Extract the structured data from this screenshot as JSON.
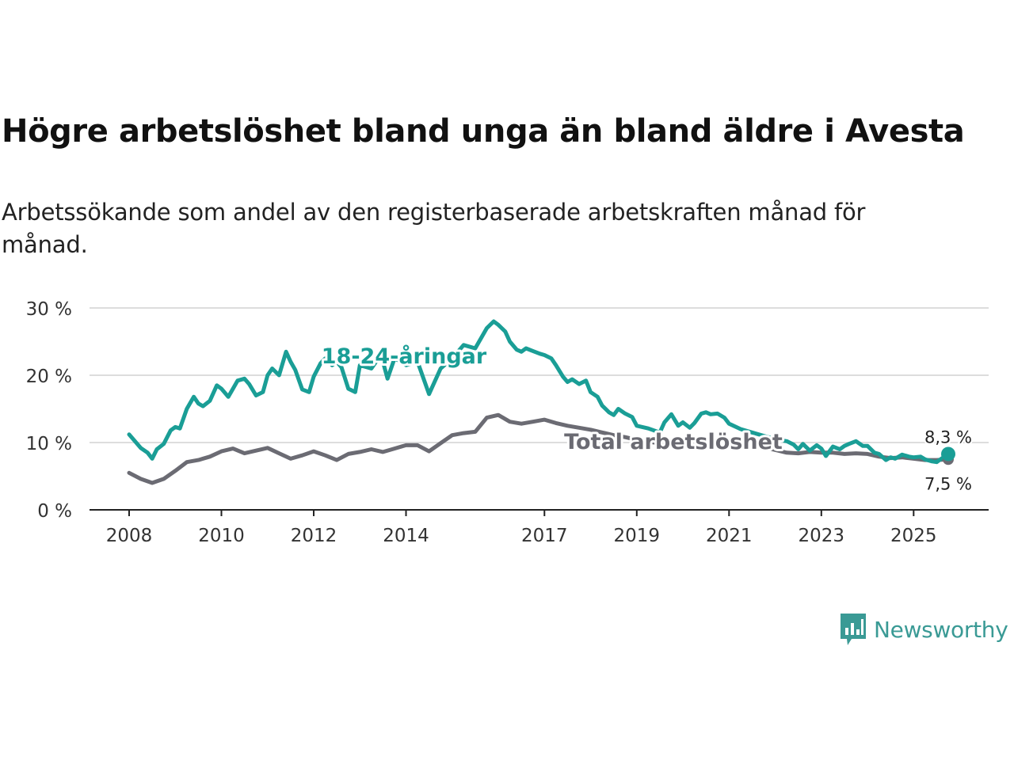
{
  "header": {
    "title": "Högre arbetslöshet bland unga än bland äldre i Avesta",
    "subtitle": "Arbetssökande som andel av den registerbaserade arbetskraften månad för månad."
  },
  "brand": {
    "name": "Newsworthy"
  },
  "colors": {
    "youth": "#1a9e96",
    "total": "#6b6b73",
    "grid": "#dddddd",
    "axis": "#222222"
  },
  "chart_data": {
    "type": "line",
    "title": "Högre arbetslöshet bland unga än bland äldre i Avesta",
    "xlabel": "",
    "ylabel": "",
    "ylim": [
      0,
      30
    ],
    "xlim": [
      2008,
      2025.75
    ],
    "y_ticks": [
      0,
      10,
      20,
      30
    ],
    "y_tick_labels": [
      "0 %",
      "10 %",
      "20 %",
      "30 %"
    ],
    "x_ticks": [
      2008,
      2010,
      2012,
      2014,
      2017,
      2019,
      2021,
      2023,
      2025
    ],
    "x_tick_labels": [
      "2008",
      "2010",
      "2012",
      "2014",
      "2017",
      "2019",
      "2021",
      "2023",
      "2025"
    ],
    "series": [
      {
        "name": "18-24-åringar",
        "label": "18-24-åringar",
        "last_label": "8,3 %",
        "x": [
          2008.0,
          2008.25,
          2008.4,
          2008.5,
          2008.6,
          2008.75,
          2008.9,
          2009.0,
          2009.1,
          2009.25,
          2009.4,
          2009.5,
          2009.6,
          2009.75,
          2009.9,
          2010.0,
          2010.15,
          2010.25,
          2010.35,
          2010.5,
          2010.6,
          2010.75,
          2010.9,
          2011.0,
          2011.1,
          2011.25,
          2011.4,
          2011.5,
          2011.6,
          2011.75,
          2011.9,
          2012.0,
          2012.15,
          2012.25,
          2012.4,
          2012.5,
          2012.6,
          2012.75,
          2012.9,
          2013.0,
          2013.25,
          2013.4,
          2013.5,
          2013.6,
          2013.75,
          2013.9,
          2014.0,
          2014.25,
          2014.5,
          2014.75,
          2015.0,
          2015.25,
          2015.5,
          2015.75,
          2015.9,
          2016.0,
          2016.15,
          2016.25,
          2016.4,
          2016.5,
          2016.6,
          2016.75,
          2016.9,
          2017.0,
          2017.15,
          2017.25,
          2017.4,
          2017.5,
          2017.6,
          2017.75,
          2017.9,
          2018.0,
          2018.15,
          2018.25,
          2018.4,
          2018.5,
          2018.6,
          2018.75,
          2018.9,
          2019.0,
          2019.25,
          2019.5,
          2019.6,
          2019.75,
          2019.9,
          2020.0,
          2020.15,
          2020.25,
          2020.4,
          2020.5,
          2020.6,
          2020.75,
          2020.9,
          2021.0,
          2021.25,
          2021.5,
          2021.75,
          2022.0,
          2022.25,
          2022.4,
          2022.5,
          2022.6,
          2022.75,
          2022.9,
          2023.0,
          2023.1,
          2023.25,
          2023.4,
          2023.5,
          2023.6,
          2023.75,
          2023.9,
          2024.0,
          2024.15,
          2024.25,
          2024.4,
          2024.5,
          2024.6,
          2024.75,
          2024.9,
          2025.0,
          2025.15,
          2025.25,
          2025.4,
          2025.5,
          2025.6,
          2025.75
        ],
        "values": [
          11.2,
          9.2,
          8.5,
          7.6,
          9.0,
          9.8,
          11.8,
          12.3,
          12.1,
          15.0,
          16.8,
          15.8,
          15.4,
          16.2,
          18.5,
          18.0,
          16.8,
          18.0,
          19.2,
          19.5,
          18.7,
          17.0,
          17.5,
          20.0,
          21.0,
          20.0,
          23.5,
          22.0,
          20.8,
          17.9,
          17.5,
          19.8,
          21.8,
          22.5,
          21.5,
          22.0,
          21.2,
          18.0,
          17.5,
          21.5,
          21.0,
          22.5,
          22.0,
          19.5,
          22.5,
          22.0,
          21.5,
          22.0,
          17.2,
          21.0,
          22.5,
          24.5,
          24.0,
          27.0,
          28.0,
          27.5,
          26.5,
          25.0,
          23.8,
          23.5,
          24.0,
          23.6,
          23.2,
          23.0,
          22.5,
          21.5,
          19.8,
          19.0,
          19.4,
          18.7,
          19.2,
          17.5,
          16.8,
          15.5,
          14.5,
          14.1,
          15.0,
          14.3,
          13.8,
          12.5,
          12.1,
          11.5,
          13.0,
          14.2,
          12.5,
          13.0,
          12.2,
          12.9,
          14.3,
          14.5,
          14.2,
          14.3,
          13.7,
          12.8,
          12.0,
          11.5,
          11.0,
          10.5,
          10.2,
          9.7,
          9.0,
          9.8,
          8.8,
          9.6,
          9.1,
          8.0,
          9.4,
          9.0,
          9.5,
          9.8,
          10.2,
          9.5,
          9.5,
          8.5,
          8.3,
          7.4,
          7.8,
          7.6,
          8.2,
          7.9,
          7.8,
          7.9,
          7.5,
          7.2,
          7.1,
          7.6,
          8.3
        ]
      },
      {
        "name": "Total arbetslöshet",
        "label": "Total arbetslöshet",
        "last_label": "7,5 %",
        "x": [
          2008.0,
          2008.25,
          2008.5,
          2008.75,
          2009.0,
          2009.25,
          2009.5,
          2009.75,
          2010.0,
          2010.25,
          2010.5,
          2010.75,
          2011.0,
          2011.25,
          2011.5,
          2011.75,
          2012.0,
          2012.25,
          2012.5,
          2012.75,
          2013.0,
          2013.25,
          2013.5,
          2013.75,
          2014.0,
          2014.25,
          2014.5,
          2014.75,
          2015.0,
          2015.25,
          2015.5,
          2015.75,
          2016.0,
          2016.25,
          2016.5,
          2016.75,
          2017.0,
          2017.25,
          2017.5,
          2017.75,
          2018.0,
          2018.25,
          2018.5,
          2018.75,
          2019.0,
          2019.25,
          2019.5,
          2019.75,
          2020.0,
          2020.25,
          2020.5,
          2020.75,
          2021.0,
          2021.25,
          2021.5,
          2021.75,
          2022.0,
          2022.25,
          2022.5,
          2022.75,
          2023.0,
          2023.25,
          2023.5,
          2023.75,
          2024.0,
          2024.25,
          2024.5,
          2024.75,
          2025.0,
          2025.25,
          2025.5,
          2025.75
        ],
        "values": [
          5.5,
          4.6,
          4.0,
          4.6,
          5.8,
          7.1,
          7.4,
          7.9,
          8.7,
          9.1,
          8.4,
          8.8,
          9.2,
          8.4,
          7.6,
          8.1,
          8.7,
          8.1,
          7.4,
          8.3,
          8.6,
          9.0,
          8.6,
          9.1,
          9.6,
          9.6,
          8.7,
          9.9,
          11.1,
          11.4,
          11.6,
          13.7,
          14.1,
          13.1,
          12.8,
          13.1,
          13.4,
          12.9,
          12.5,
          12.2,
          11.9,
          11.5,
          11.1,
          10.8,
          10.4,
          10.1,
          9.9,
          9.7,
          9.6,
          9.5,
          9.4,
          9.4,
          9.5,
          9.4,
          9.3,
          9.3,
          8.9,
          8.5,
          8.4,
          8.6,
          8.5,
          8.5,
          8.3,
          8.4,
          8.3,
          7.9,
          7.7,
          7.8,
          7.6,
          7.4,
          7.4,
          7.5
        ]
      }
    ]
  }
}
